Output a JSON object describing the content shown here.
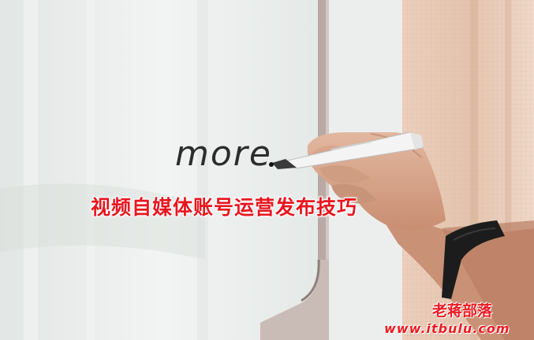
{
  "photo": {
    "handwritten_word": "more",
    "headline": "视频自媒体账号运营发布技巧"
  },
  "watermark": {
    "name": "老蒋部落",
    "url": "www.itbulu.com"
  },
  "colors": {
    "headline": "#e8161f",
    "watermark": "#ef1b23",
    "whiteboard": "#eef1ef",
    "curtain": "#e6c9b5"
  }
}
